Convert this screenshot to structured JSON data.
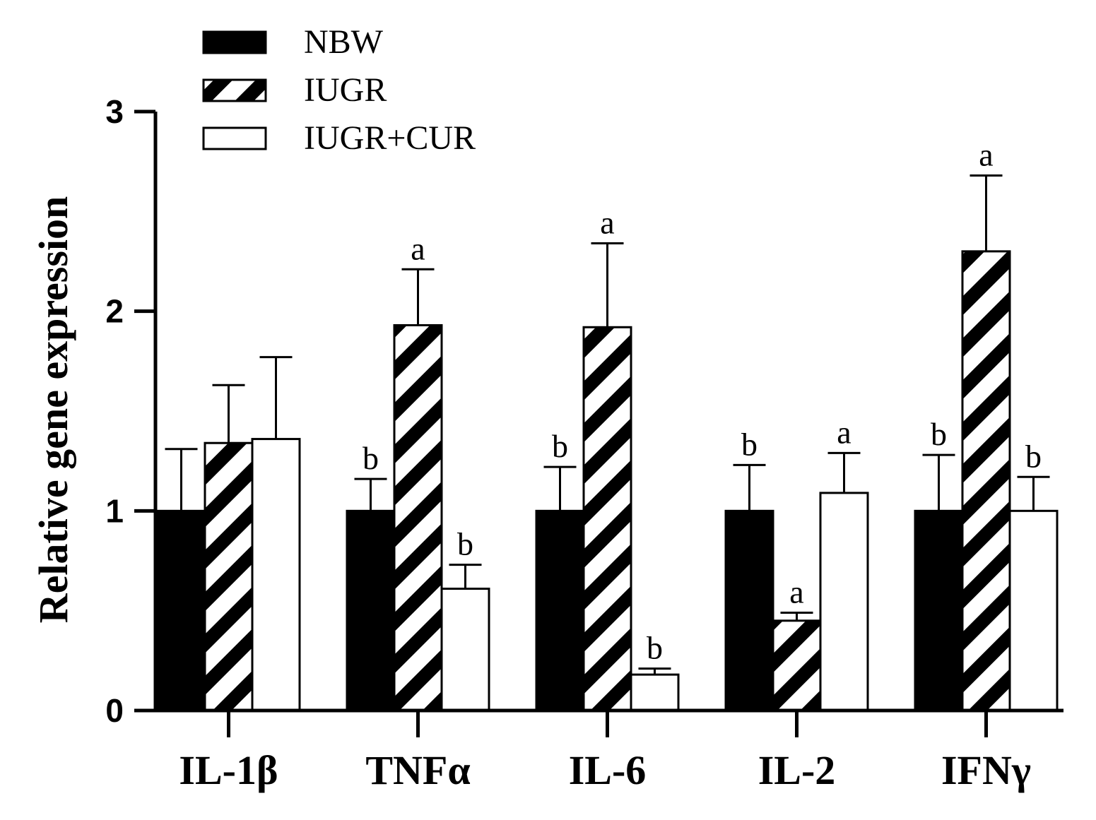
{
  "chart_data": {
    "type": "bar",
    "title": "",
    "xlabel": "",
    "ylabel": "Relative gene expression",
    "ylim": [
      0,
      3
    ],
    "yticks": [
      "0",
      "1",
      "2",
      "3"
    ],
    "categories": [
      "IL-1β",
      "TNFα",
      "IL-6",
      "IL-2",
      "IFNγ"
    ],
    "legend_position": "top-left",
    "series": [
      {
        "name": "NBW",
        "fill": "solid",
        "color": "#000000",
        "values": [
          1.0,
          1.0,
          1.0,
          1.0,
          1.0
        ],
        "errors": [
          0.31,
          0.16,
          0.22,
          0.23,
          0.28
        ],
        "labels": [
          "",
          "b",
          "b",
          "b",
          "b"
        ]
      },
      {
        "name": "IUGR",
        "fill": "hatched",
        "color": "#000000",
        "values": [
          1.34,
          1.93,
          1.92,
          0.45,
          2.3
        ],
        "errors": [
          0.29,
          0.28,
          0.42,
          0.04,
          0.38
        ],
        "labels": [
          "",
          "a",
          "a",
          "a",
          "a"
        ]
      },
      {
        "name": "IUGR+CUR",
        "fill": "open",
        "color": "#ffffff",
        "values": [
          1.36,
          0.61,
          0.18,
          1.09,
          1.0
        ],
        "errors": [
          0.41,
          0.12,
          0.03,
          0.2,
          0.17
        ],
        "labels": [
          "",
          "b",
          "b",
          "a",
          "b"
        ]
      }
    ]
  }
}
